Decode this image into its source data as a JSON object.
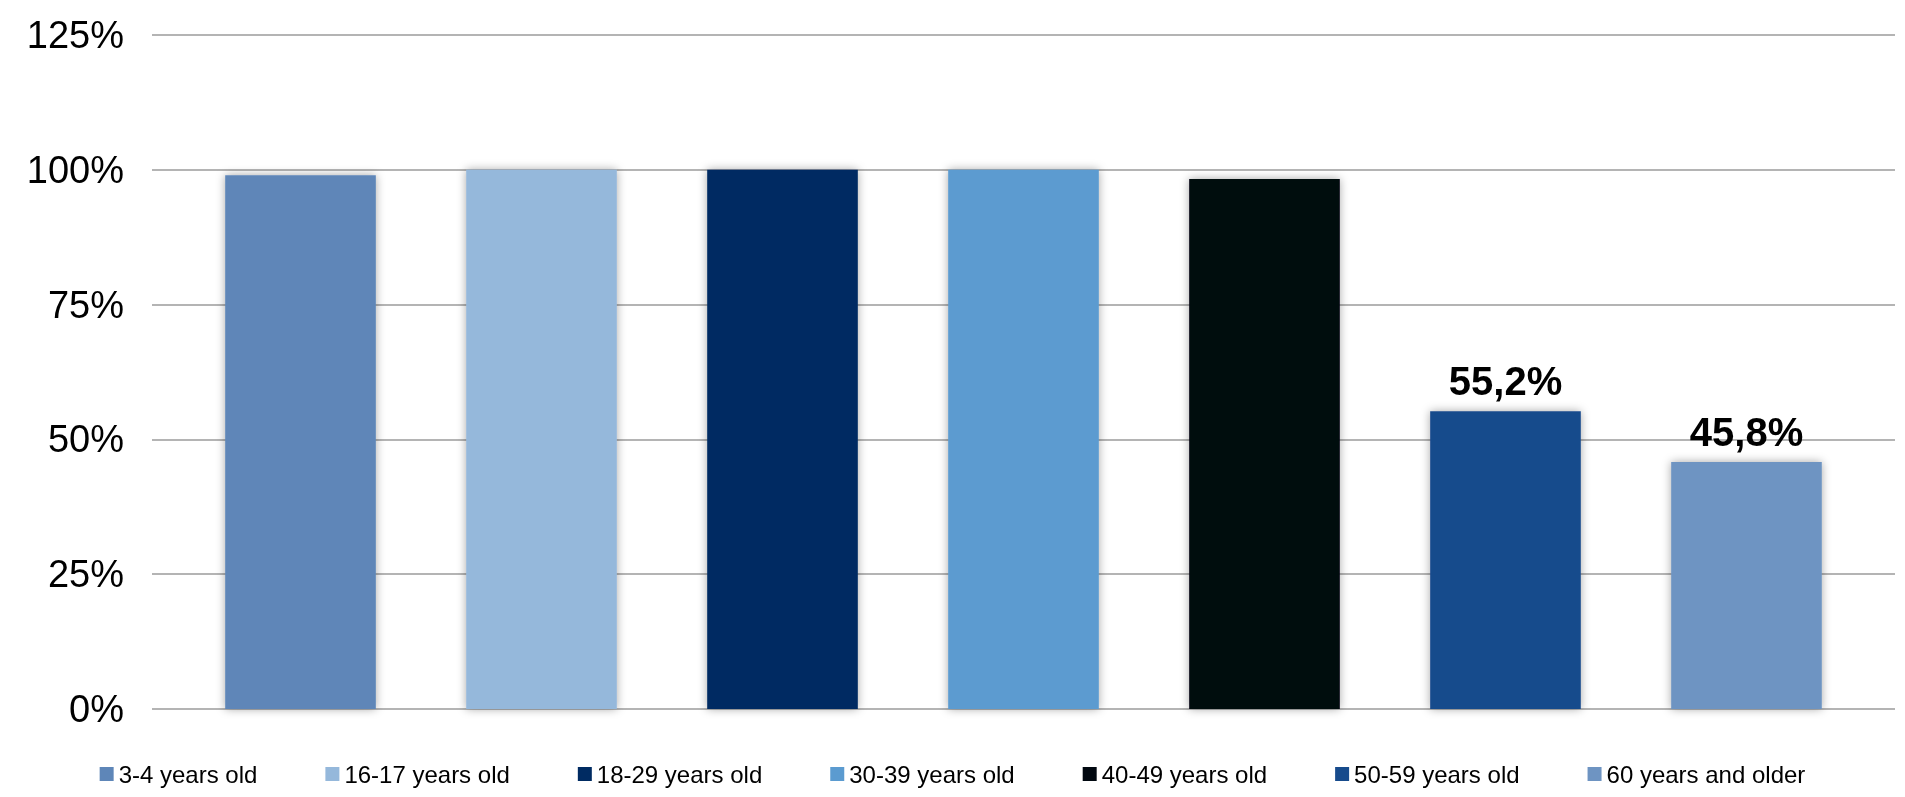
{
  "chart_data": {
    "type": "bar",
    "categories": [
      null
    ],
    "series": [
      {
        "name": "3-4 years old",
        "color": "#5e86b8",
        "values": [
          99
        ]
      },
      {
        "name": "16-17 years old",
        "color": "#95b8db",
        "values": [
          100
        ]
      },
      {
        "name": "18-29 years old",
        "color": "#002b62",
        "values": [
          100
        ]
      },
      {
        "name": "30-39 years old",
        "color": "#5b9bd0",
        "values": [
          100
        ]
      },
      {
        "name": "40-49 years old",
        "color": "#010810",
        "values": [
          98.3
        ]
      },
      {
        "name": "50-59 years old",
        "color": "#174b8c",
        "values": [
          55.2
        ],
        "value_labels": [
          "55,2%"
        ]
      },
      {
        "name": "60 years and older",
        "color": "#6e94c2",
        "values": [
          45.8
        ],
        "value_labels": [
          "45,8%"
        ]
      }
    ],
    "ylim": [
      0,
      125
    ],
    "yticks": [
      {
        "value": 0,
        "label": "0%"
      },
      {
        "value": 25,
        "label": "25%"
      },
      {
        "value": 50,
        "label": "50%"
      },
      {
        "value": 75,
        "label": "75%"
      },
      {
        "value": 100,
        "label": "100%"
      },
      {
        "value": 125,
        "label": "125%"
      }
    ],
    "grid": "y",
    "legend": "bottom",
    "tick_labels": "y"
  }
}
